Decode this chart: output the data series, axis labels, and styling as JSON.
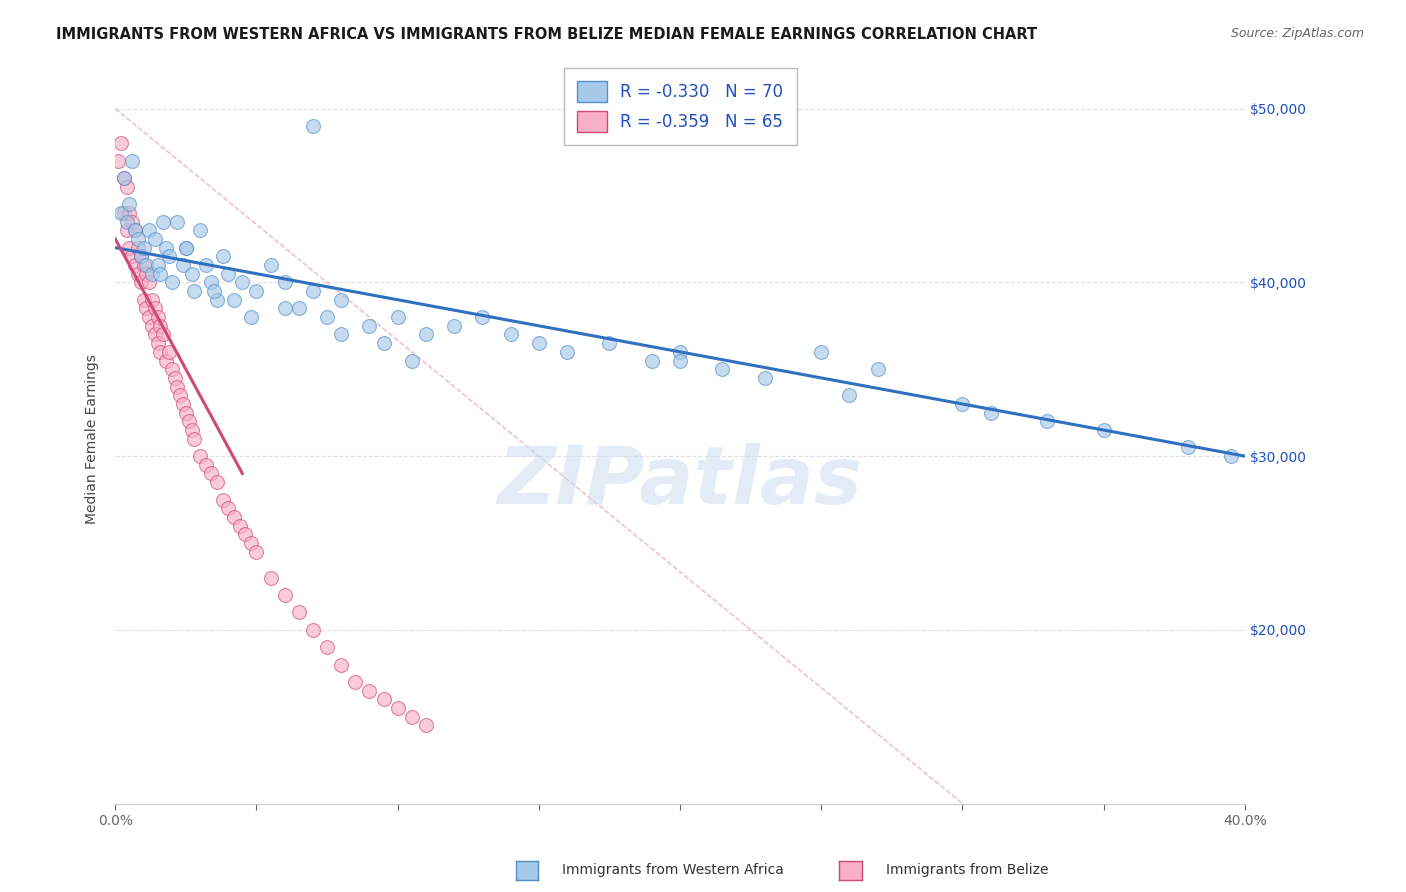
{
  "title": "IMMIGRANTS FROM WESTERN AFRICA VS IMMIGRANTS FROM BELIZE MEDIAN FEMALE EARNINGS CORRELATION CHART",
  "source": "Source: ZipAtlas.com",
  "ylabel": "Median Female Earnings",
  "xlim": [
    0.0,
    0.4
  ],
  "ylim": [
    10000,
    52000
  ],
  "yticks": [
    20000,
    30000,
    40000,
    50000
  ],
  "ytick_labels": [
    "$20,000",
    "$30,000",
    "$40,000",
    "$50,000"
  ],
  "xticks": [
    0.0,
    0.05,
    0.1,
    0.15,
    0.2,
    0.25,
    0.3,
    0.35,
    0.4
  ],
  "xtick_labels": [
    "0.0%",
    "",
    "",
    "",
    "",
    "",
    "",
    "",
    "40.0%"
  ],
  "color_blue": "#a8c8e8",
  "color_pink": "#f8b0c8",
  "color_blue_edge": "#5090c8",
  "color_pink_edge": "#d04878",
  "color_blue_line": "#3070c0",
  "color_pink_line": "#d04878",
  "color_ref_line": "#f0a0b8",
  "color_legend_R": "#2050c0",
  "color_watermark": "#d0dff0",
  "watermark_text": "ZIPatlas",
  "legend_R1": "R = -0.330",
  "legend_N1": "N = 70",
  "legend_R2": "R = -0.359",
  "legend_N2": "N = 65",
  "legend_label1": "Immigrants from Western Africa",
  "legend_label2": "Immigrants from Belize",
  "blue_scatter_x": [
    0.002,
    0.003,
    0.004,
    0.005,
    0.006,
    0.007,
    0.008,
    0.009,
    0.01,
    0.011,
    0.012,
    0.013,
    0.014,
    0.015,
    0.016,
    0.017,
    0.018,
    0.019,
    0.02,
    0.022,
    0.024,
    0.025,
    0.027,
    0.028,
    0.03,
    0.032,
    0.034,
    0.036,
    0.038,
    0.04,
    0.042,
    0.045,
    0.05,
    0.055,
    0.06,
    0.065,
    0.07,
    0.075,
    0.08,
    0.09,
    0.1,
    0.11,
    0.12,
    0.13,
    0.14,
    0.15,
    0.16,
    0.175,
    0.19,
    0.2,
    0.215,
    0.23,
    0.25,
    0.27,
    0.3,
    0.33,
    0.35,
    0.38,
    0.395,
    0.06,
    0.08,
    0.095,
    0.105,
    0.2,
    0.26,
    0.31,
    0.035,
    0.048,
    0.025,
    0.07
  ],
  "blue_scatter_y": [
    44000,
    46000,
    43500,
    44500,
    47000,
    43000,
    42500,
    41500,
    42000,
    41000,
    43000,
    40500,
    42500,
    41000,
    40500,
    43500,
    42000,
    41500,
    40000,
    43500,
    41000,
    42000,
    40500,
    39500,
    43000,
    41000,
    40000,
    39000,
    41500,
    40500,
    39000,
    40000,
    39500,
    41000,
    40000,
    38500,
    39500,
    38000,
    39000,
    37500,
    38000,
    37000,
    37500,
    38000,
    37000,
    36500,
    36000,
    36500,
    35500,
    36000,
    35000,
    34500,
    36000,
    35000,
    33000,
    32000,
    31500,
    30500,
    30000,
    38500,
    37000,
    36500,
    35500,
    35500,
    33500,
    32500,
    39500,
    38000,
    42000,
    49000
  ],
  "pink_scatter_x": [
    0.001,
    0.002,
    0.003,
    0.003,
    0.004,
    0.004,
    0.005,
    0.005,
    0.006,
    0.006,
    0.007,
    0.007,
    0.008,
    0.008,
    0.009,
    0.009,
    0.01,
    0.01,
    0.011,
    0.011,
    0.012,
    0.012,
    0.013,
    0.013,
    0.014,
    0.014,
    0.015,
    0.015,
    0.016,
    0.016,
    0.017,
    0.018,
    0.019,
    0.02,
    0.021,
    0.022,
    0.023,
    0.024,
    0.025,
    0.026,
    0.027,
    0.028,
    0.03,
    0.032,
    0.034,
    0.036,
    0.038,
    0.04,
    0.042,
    0.044,
    0.046,
    0.048,
    0.05,
    0.055,
    0.06,
    0.065,
    0.07,
    0.075,
    0.08,
    0.085,
    0.09,
    0.095,
    0.1,
    0.105,
    0.11
  ],
  "pink_scatter_y": [
    47000,
    48000,
    46000,
    44000,
    45500,
    43000,
    44000,
    42000,
    43500,
    41500,
    43000,
    41000,
    42000,
    40500,
    41500,
    40000,
    41000,
    39000,
    40500,
    38500,
    40000,
    38000,
    39000,
    37500,
    38500,
    37000,
    38000,
    36500,
    37500,
    36000,
    37000,
    35500,
    36000,
    35000,
    34500,
    34000,
    33500,
    33000,
    32500,
    32000,
    31500,
    31000,
    30000,
    29500,
    29000,
    28500,
    27500,
    27000,
    26500,
    26000,
    25500,
    25000,
    24500,
    23000,
    22000,
    21000,
    20000,
    19000,
    18000,
    17000,
    16500,
    16000,
    15500,
    15000,
    14500
  ],
  "blue_line_x": [
    0.0,
    0.4
  ],
  "blue_line_y": [
    42000,
    30000
  ],
  "pink_line_x": [
    0.0,
    0.045
  ],
  "pink_line_y": [
    42500,
    29000
  ],
  "ref_line_x": [
    0.0,
    0.3
  ],
  "ref_line_y": [
    50000,
    10000
  ]
}
